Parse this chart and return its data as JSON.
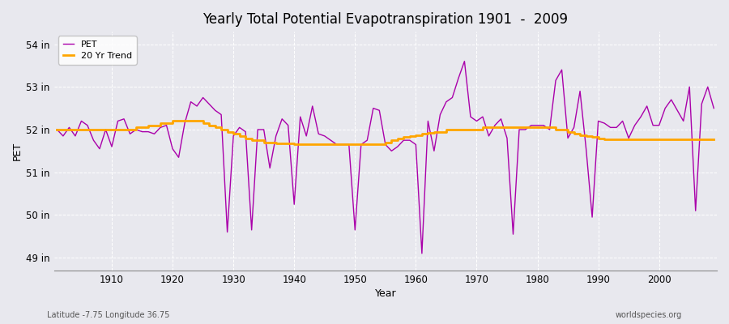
{
  "title": "Yearly Total Potential Evapotranspiration 1901  -  2009",
  "xlabel": "Year",
  "ylabel": "PET",
  "bottom_left": "Latitude -7.75 Longitude 36.75",
  "bottom_right": "worldspecies.org",
  "pet_color": "#aa00aa",
  "trend_color": "#FFA500",
  "bg_color": "#e8e8ee",
  "grid_color": "#ffffff",
  "ylim": [
    48.7,
    54.3
  ],
  "yticks": [
    49,
    50,
    51,
    52,
    53,
    54
  ],
  "ytick_labels": [
    "49 in",
    "50 in",
    "51 in",
    "52 in",
    "53 in",
    "54 in"
  ],
  "xlim": [
    1900.5,
    2009.5
  ],
  "xticks": [
    1910,
    1920,
    1930,
    1940,
    1950,
    1960,
    1970,
    1980,
    1990,
    2000
  ],
  "years": [
    1901,
    1902,
    1903,
    1904,
    1905,
    1906,
    1907,
    1908,
    1909,
    1910,
    1911,
    1912,
    1913,
    1914,
    1915,
    1916,
    1917,
    1918,
    1919,
    1920,
    1921,
    1922,
    1923,
    1924,
    1925,
    1926,
    1927,
    1928,
    1929,
    1930,
    1931,
    1932,
    1933,
    1934,
    1935,
    1936,
    1937,
    1938,
    1939,
    1940,
    1941,
    1942,
    1943,
    1944,
    1945,
    1946,
    1947,
    1948,
    1949,
    1950,
    1951,
    1952,
    1953,
    1954,
    1955,
    1956,
    1957,
    1958,
    1959,
    1960,
    1961,
    1962,
    1963,
    1964,
    1965,
    1966,
    1967,
    1968,
    1969,
    1970,
    1971,
    1972,
    1973,
    1974,
    1975,
    1976,
    1977,
    1978,
    1979,
    1980,
    1981,
    1982,
    1983,
    1984,
    1985,
    1986,
    1987,
    1988,
    1989,
    1990,
    1991,
    1992,
    1993,
    1994,
    1995,
    1996,
    1997,
    1998,
    1999,
    2000,
    2001,
    2002,
    2003,
    2004,
    2005,
    2006,
    2007,
    2008,
    2009
  ],
  "pet_values": [
    52.0,
    51.85,
    52.05,
    51.85,
    52.2,
    52.1,
    51.75,
    51.55,
    52.0,
    51.6,
    52.2,
    52.25,
    51.9,
    52.0,
    51.95,
    51.95,
    51.9,
    52.05,
    52.1,
    51.55,
    51.35,
    52.15,
    52.65,
    52.55,
    52.75,
    52.6,
    52.45,
    52.35,
    49.6,
    51.85,
    52.05,
    51.95,
    49.65,
    52.0,
    52.0,
    51.1,
    51.85,
    52.25,
    52.1,
    50.25,
    52.3,
    51.85,
    52.55,
    51.9,
    51.85,
    51.75,
    51.65,
    51.65,
    51.65,
    49.65,
    51.65,
    51.75,
    52.5,
    52.45,
    51.65,
    51.5,
    51.6,
    51.75,
    51.75,
    51.65,
    49.1,
    52.2,
    51.5,
    52.35,
    52.65,
    52.75,
    53.2,
    53.6,
    52.3,
    52.2,
    52.3,
    51.85,
    52.1,
    52.25,
    51.8,
    49.55,
    52.0,
    52.0,
    52.1,
    52.1,
    52.1,
    52.0,
    53.15,
    53.4,
    51.8,
    52.05,
    52.9,
    51.55,
    49.95,
    52.2,
    52.15,
    52.05,
    52.05,
    52.2,
    51.8,
    52.1,
    52.3,
    52.55,
    52.1,
    52.1,
    52.5,
    52.7,
    52.45,
    52.2,
    53.0,
    50.1,
    52.6,
    53.0,
    52.5
  ],
  "trend_years": [
    1901,
    1902,
    1903,
    1904,
    1905,
    1906,
    1907,
    1908,
    1909,
    1910,
    1911,
    1912,
    1913,
    1914,
    1915,
    1916,
    1917,
    1918,
    1919,
    1920,
    1921,
    1922,
    1923,
    1924,
    1925,
    1926,
    1927,
    1928,
    1929,
    1930,
    1931,
    1932,
    1933,
    1934,
    1935,
    1936,
    1937,
    1938,
    1939,
    1940,
    1941,
    1942,
    1943,
    1944,
    1945,
    1946,
    1947,
    1948,
    1949,
    1950,
    1951,
    1952,
    1953,
    1954,
    1955,
    1956,
    1957,
    1958,
    1959,
    1960,
    1961,
    1962,
    1963,
    1964,
    1965,
    1966,
    1967,
    1968,
    1969,
    1970,
    1971,
    1972,
    1973,
    1974,
    1975,
    1976,
    1977,
    1978,
    1979,
    1980,
    1981,
    1982,
    1983,
    1984,
    1985,
    1986,
    1987,
    1988,
    1989,
    1990,
    1991,
    1992,
    1993,
    1994,
    1995,
    1996,
    1997,
    1998,
    1999,
    2000,
    2001,
    2002,
    2003,
    2004,
    2005,
    2006,
    2007,
    2008,
    2009
  ],
  "trend_values": [
    52.0,
    52.0,
    52.0,
    52.0,
    52.0,
    52.0,
    52.0,
    52.0,
    52.0,
    52.0,
    52.0,
    52.0,
    52.0,
    52.05,
    52.05,
    52.1,
    52.1,
    52.15,
    52.15,
    52.2,
    52.2,
    52.2,
    52.2,
    52.2,
    52.15,
    52.1,
    52.05,
    52.0,
    51.95,
    51.9,
    51.85,
    51.8,
    51.75,
    51.75,
    51.7,
    51.7,
    51.68,
    51.68,
    51.68,
    51.65,
    51.65,
    51.65,
    51.65,
    51.65,
    51.65,
    51.65,
    51.65,
    51.65,
    51.65,
    51.65,
    51.65,
    51.65,
    51.65,
    51.65,
    51.7,
    51.75,
    51.8,
    51.82,
    51.85,
    51.87,
    51.9,
    51.92,
    51.95,
    51.95,
    52.0,
    52.0,
    52.0,
    52.0,
    52.0,
    52.0,
    52.05,
    52.05,
    52.05,
    52.05,
    52.05,
    52.05,
    52.05,
    52.05,
    52.05,
    52.05,
    52.05,
    52.05,
    52.0,
    52.0,
    51.95,
    51.9,
    51.87,
    51.85,
    51.82,
    51.8,
    51.78,
    51.78,
    51.78,
    51.78,
    51.78,
    51.78,
    51.78,
    51.78,
    51.78,
    51.78,
    51.78,
    51.78,
    51.78,
    51.78,
    51.78,
    51.78,
    51.78,
    51.78,
    51.78
  ]
}
